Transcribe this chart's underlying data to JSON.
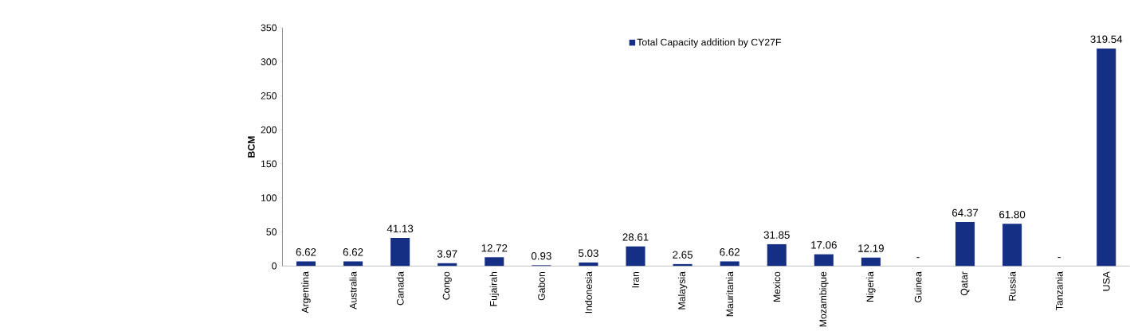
{
  "chart_data": {
    "type": "bar",
    "ylabel": "BCM",
    "categories": [
      "Argentina",
      "Australia",
      "Canada",
      "Congo",
      "Fujairah",
      "Gabon",
      "Indonesia",
      "Iran",
      "Malaysia",
      "Mauritania",
      "Mexico",
      "Mozambique",
      "Nigeria",
      "Guinea",
      "Qatar",
      "Russia",
      "Tanzania",
      "USA"
    ],
    "series": [
      {
        "name": "Total Capacity addition by CY27F",
        "color": "#152f85",
        "values": [
          6.62,
          6.62,
          41.13,
          3.97,
          12.72,
          0.93,
          5.03,
          28.61,
          2.65,
          6.62,
          31.85,
          17.06,
          12.19,
          0,
          64.37,
          61.8,
          0,
          319.54
        ],
        "value_labels": [
          "6.62",
          "6.62",
          "41.13",
          "3.97",
          "12.72",
          "0.93",
          "5.03",
          "28.61",
          "2.65",
          "6.62",
          "31.85",
          "17.06",
          "12.19",
          "-",
          "64.37",
          "61.80",
          "-",
          "319.54"
        ]
      }
    ],
    "ylim": [
      0,
      350
    ],
    "yticks": [
      0,
      50,
      100,
      150,
      200,
      250,
      300,
      350
    ],
    "legend": "top",
    "grid": false
  }
}
